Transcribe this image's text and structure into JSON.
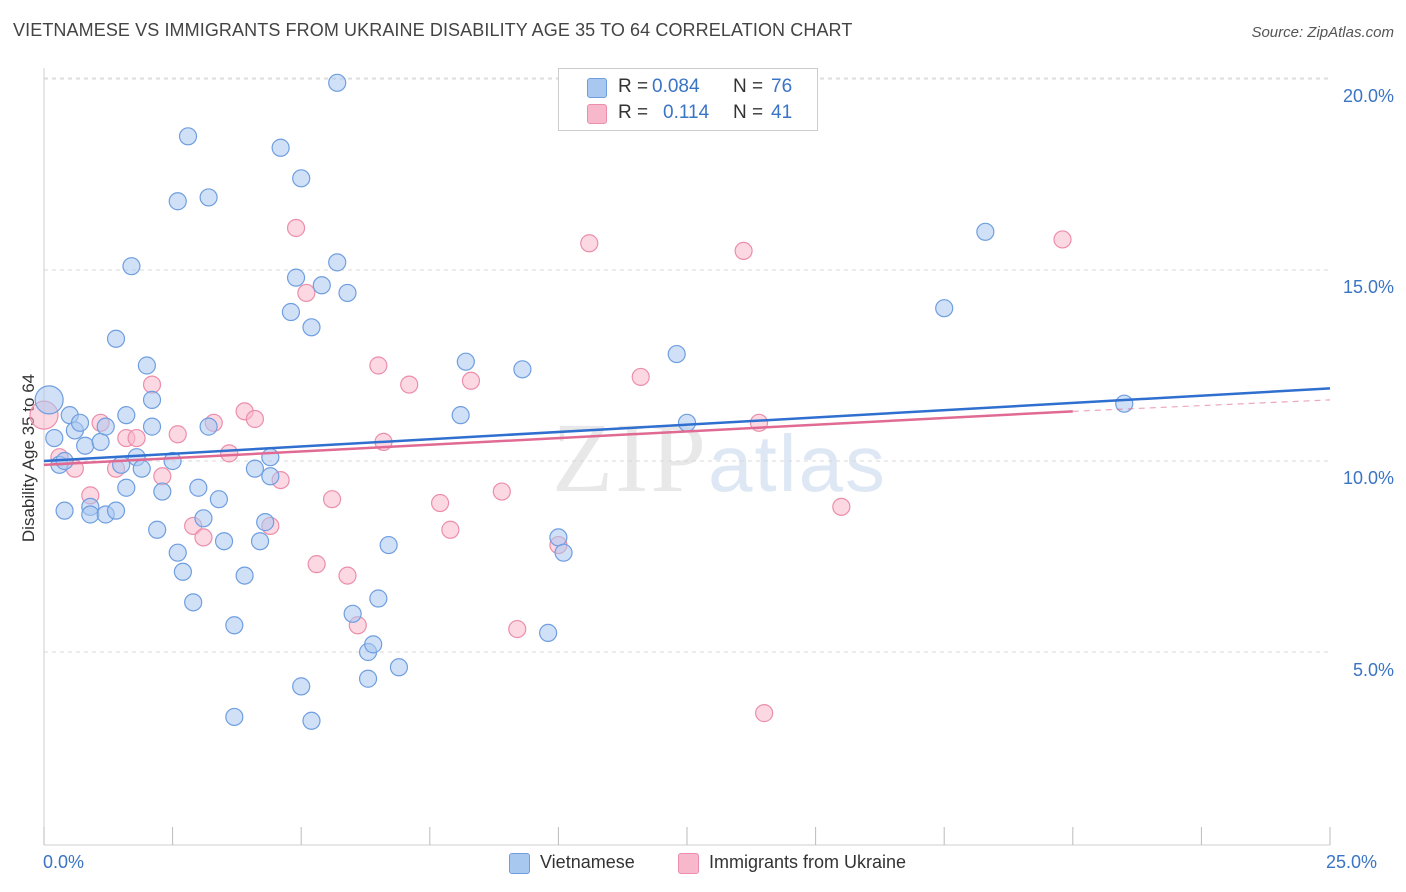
{
  "title": "VIETNAMESE VS IMMIGRANTS FROM UKRAINE DISABILITY AGE 35 TO 64 CORRELATION CHART",
  "source": "Source: ZipAtlas.com",
  "watermark": {
    "zip": "ZIP",
    "atlas": "atlas"
  },
  "legend_top": {
    "rows": [
      {
        "r_label": "R =",
        "r_value": "0.084",
        "n_label": "N =",
        "n_value": "76",
        "color": "#a9c8f0"
      },
      {
        "r_label": "R =",
        "r_value": "0.114",
        "n_label": "N =",
        "n_value": "41",
        "color": "#f7b8cb"
      }
    ]
  },
  "legend_bottom": {
    "items": [
      "Vietnamese",
      "Immigrants from Ukraine"
    ]
  },
  "colors": {
    "vietnamese_fill": "#a9c8f0",
    "vietnamese_stroke": "#6f9ee0",
    "vietnamese_line": "#2f6fcf",
    "ukraine_fill": "#f7b8cb",
    "ukraine_stroke": "#ec8eab",
    "ukraine_line": "#e06a93",
    "tick_label": "#3a74c4",
    "grid": "#d8d8d8"
  },
  "chart_data": {
    "type": "scatter",
    "title": "VIETNAMESE VS IMMIGRANTS FROM UKRAINE DISABILITY AGE 35 TO 64 CORRELATION CHART",
    "xlabel": "",
    "ylabel": "Disability Age 35 to 64",
    "xlim": [
      0,
      25
    ],
    "ylim": [
      0,
      20.5
    ],
    "x_tick_labels": [
      "0.0%",
      "25.0%"
    ],
    "y_tick_labels": [
      "5.0%",
      "10.0%",
      "15.0%",
      "20.0%"
    ],
    "y_ticks": [
      5,
      10,
      15,
      20
    ],
    "grid": "horizontal dashed",
    "legend_position": "top-center and bottom",
    "series": [
      {
        "name": "Vietnamese",
        "r": 0.084,
        "n": 76,
        "trend": {
          "x": [
            0,
            25
          ],
          "y": [
            10.0,
            11.9
          ]
        },
        "points": [
          [
            0.1,
            11.6
          ],
          [
            0.2,
            10.6
          ],
          [
            0.3,
            9.9
          ],
          [
            0.4,
            10.0
          ],
          [
            0.4,
            8.7
          ],
          [
            0.5,
            11.2
          ],
          [
            0.6,
            10.8
          ],
          [
            0.7,
            11.0
          ],
          [
            0.8,
            10.4
          ],
          [
            0.9,
            8.8
          ],
          [
            0.9,
            8.6
          ],
          [
            1.1,
            10.5
          ],
          [
            1.2,
            8.6
          ],
          [
            1.2,
            10.9
          ],
          [
            1.4,
            8.7
          ],
          [
            1.5,
            9.9
          ],
          [
            1.6,
            9.3
          ],
          [
            1.6,
            11.2
          ],
          [
            1.7,
            15.1
          ],
          [
            1.4,
            13.2
          ],
          [
            1.8,
            10.1
          ],
          [
            1.9,
            9.8
          ],
          [
            2.0,
            12.5
          ],
          [
            2.1,
            11.6
          ],
          [
            2.1,
            10.9
          ],
          [
            2.2,
            8.2
          ],
          [
            2.3,
            9.2
          ],
          [
            2.5,
            10.0
          ],
          [
            2.6,
            7.6
          ],
          [
            2.7,
            7.1
          ],
          [
            2.6,
            16.8
          ],
          [
            2.9,
            6.3
          ],
          [
            2.8,
            18.5
          ],
          [
            3.0,
            9.3
          ],
          [
            3.1,
            8.5
          ],
          [
            3.2,
            10.9
          ],
          [
            3.2,
            16.9
          ],
          [
            3.4,
            9.0
          ],
          [
            3.5,
            7.9
          ],
          [
            3.7,
            5.7
          ],
          [
            3.7,
            3.3
          ],
          [
            3.9,
            7.0
          ],
          [
            4.1,
            9.8
          ],
          [
            4.2,
            7.9
          ],
          [
            4.3,
            8.4
          ],
          [
            4.4,
            9.6
          ],
          [
            4.4,
            10.1
          ],
          [
            4.6,
            18.2
          ],
          [
            4.8,
            13.9
          ],
          [
            4.9,
            14.8
          ],
          [
            5.0,
            4.1
          ],
          [
            5.0,
            17.4
          ],
          [
            5.2,
            13.5
          ],
          [
            5.2,
            3.2
          ],
          [
            5.4,
            14.6
          ],
          [
            5.7,
            19.9
          ],
          [
            5.7,
            15.2
          ],
          [
            5.9,
            14.4
          ],
          [
            6.0,
            6.0
          ],
          [
            6.3,
            4.3
          ],
          [
            6.3,
            5.0
          ],
          [
            6.4,
            5.2
          ],
          [
            6.5,
            6.4
          ],
          [
            6.7,
            7.8
          ],
          [
            6.9,
            4.6
          ],
          [
            8.1,
            11.2
          ],
          [
            8.2,
            12.6
          ],
          [
            9.3,
            12.4
          ],
          [
            9.8,
            5.5
          ],
          [
            10.0,
            8.0
          ],
          [
            10.1,
            7.6
          ],
          [
            12.3,
            12.8
          ],
          [
            12.5,
            11.0
          ],
          [
            17.5,
            14.0
          ],
          [
            18.3,
            16.0
          ],
          [
            21.0,
            11.5
          ]
        ]
      },
      {
        "name": "Immigrants from Ukraine",
        "r": 0.114,
        "n": 41,
        "trend": {
          "x": [
            0,
            20
          ],
          "y": [
            9.9,
            11.3
          ]
        },
        "trend_dashed": {
          "x": [
            20,
            25
          ],
          "y": [
            11.3,
            11.6
          ]
        },
        "points": [
          [
            0.0,
            11.2
          ],
          [
            0.3,
            10.1
          ],
          [
            0.6,
            9.8
          ],
          [
            0.9,
            9.1
          ],
          [
            1.1,
            11.0
          ],
          [
            1.4,
            9.8
          ],
          [
            1.6,
            10.6
          ],
          [
            1.8,
            10.6
          ],
          [
            2.1,
            12.0
          ],
          [
            2.3,
            9.6
          ],
          [
            2.6,
            10.7
          ],
          [
            2.9,
            8.3
          ],
          [
            3.1,
            8.0
          ],
          [
            3.3,
            11.0
          ],
          [
            3.6,
            10.2
          ],
          [
            3.9,
            11.3
          ],
          [
            4.1,
            11.1
          ],
          [
            4.4,
            8.3
          ],
          [
            4.6,
            9.5
          ],
          [
            4.9,
            16.1
          ],
          [
            5.1,
            14.4
          ],
          [
            5.3,
            7.3
          ],
          [
            5.6,
            9.0
          ],
          [
            5.9,
            7.0
          ],
          [
            6.1,
            5.7
          ],
          [
            6.5,
            12.5
          ],
          [
            6.6,
            10.5
          ],
          [
            7.1,
            12.0
          ],
          [
            7.7,
            8.9
          ],
          [
            7.9,
            8.2
          ],
          [
            8.3,
            12.1
          ],
          [
            8.9,
            9.2
          ],
          [
            9.2,
            5.6
          ],
          [
            10.0,
            7.8
          ],
          [
            10.6,
            15.7
          ],
          [
            11.6,
            12.2
          ],
          [
            13.9,
            11.0
          ],
          [
            14.0,
            3.4
          ],
          [
            13.6,
            15.5
          ],
          [
            15.5,
            8.8
          ],
          [
            19.8,
            15.8
          ]
        ]
      }
    ]
  }
}
